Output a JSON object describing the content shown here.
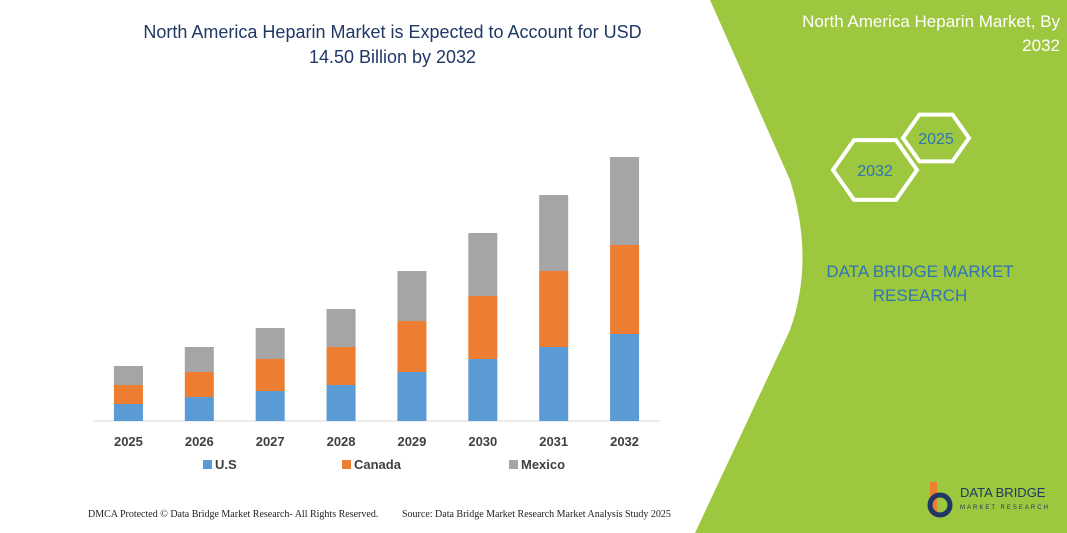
{
  "chart_data": {
    "type": "bar",
    "stacked": true,
    "title": "North America Heparin Market is Expected to Account for USD 14.50 Billion by 2032",
    "categories": [
      "2025",
      "2026",
      "2027",
      "2028",
      "2029",
      "2030",
      "2031",
      "2032"
    ],
    "series": [
      {
        "name": "U.S",
        "color": "#5b9bd5",
        "values": [
          17,
          24,
          30,
          36,
          49,
          62,
          74,
          87
        ]
      },
      {
        "name": "Canada",
        "color": "#ed7d31",
        "values": [
          19,
          25,
          32,
          38,
          51,
          63,
          76,
          89
        ]
      },
      {
        "name": "Mexico",
        "color": "#a5a5a5",
        "values": [
          19,
          25,
          31,
          38,
          50,
          63,
          76,
          88
        ]
      }
    ]
  },
  "panel": {
    "title": "North America Heparin Market, By 2032",
    "hexagons": [
      "2025",
      "2032"
    ],
    "brand": "DATA BRIDGE MARKET RESEARCH"
  },
  "footer": {
    "left": "DMCA Protected © Data Bridge Market Research- All Rights Reserved.",
    "right": "Source: Data Bridge Market Research Market Analysis Study 2025"
  },
  "logo": {
    "name": "DATA BRIDGE",
    "sub": "MARKET RESEARCH"
  }
}
